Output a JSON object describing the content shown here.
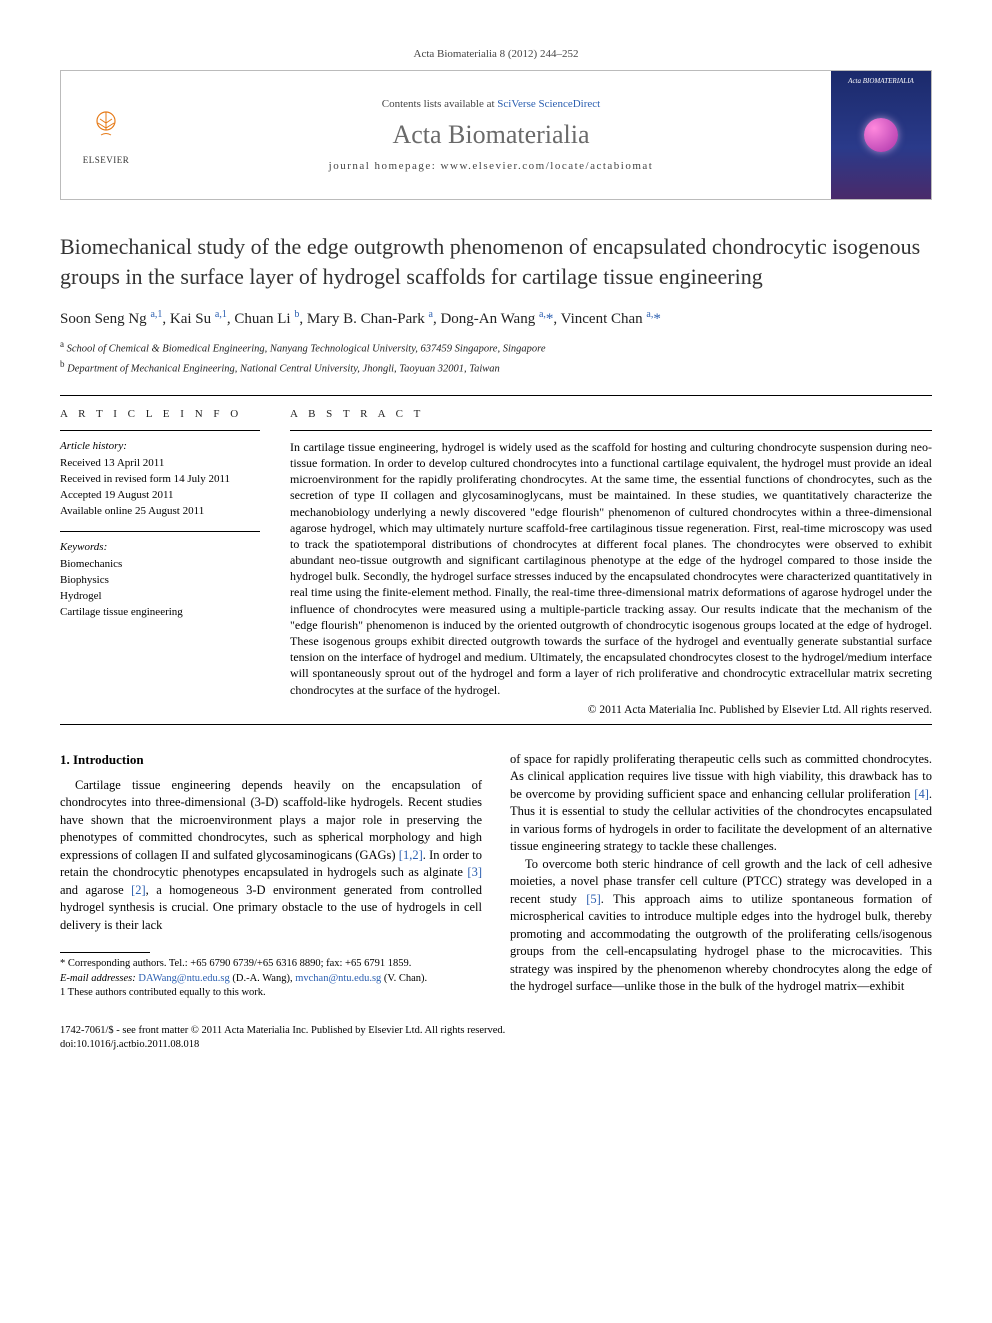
{
  "running_head": "Acta Biomaterialia 8 (2012) 244–252",
  "masthead": {
    "publisher_name": "ELSEVIER",
    "contents_prefix": "Contents lists available at ",
    "contents_link": "SciVerse ScienceDirect",
    "journal_name": "Acta Biomaterialia",
    "homepage_label": "journal homepage: www.elsevier.com/locate/actabiomat",
    "cover_text": "Acta BIOMATERIALIA"
  },
  "title": "Biomechanical study of the edge outgrowth phenomenon of encapsulated chondrocytic isogenous groups in the surface layer of hydrogel scaffolds for cartilage tissue engineering",
  "authors_html": "Soon Seng Ng <sup>a,1</sup>, Kai Su <sup>a,1</sup>, Chuan Li <sup>b</sup>, Mary B. Chan-Park <sup>a</sup>, Dong-An Wang <sup>a,</sup><span class='corr'>*</span>, Vincent Chan <sup>a,</sup><span class='corr'>*</span>",
  "affiliations": {
    "a": "School of Chemical & Biomedical Engineering, Nanyang Technological University, 637459 Singapore, Singapore",
    "b": "Department of Mechanical Engineering, National Central University, Jhongli, Taoyuan 32001, Taiwan"
  },
  "article_info": {
    "head": "A R T I C L E   I N F O",
    "history_head": "Article history:",
    "received": "Received 13 April 2011",
    "revised": "Received in revised form 14 July 2011",
    "accepted": "Accepted 19 August 2011",
    "online": "Available online 25 August 2011",
    "keywords_head": "Keywords:",
    "keywords": [
      "Biomechanics",
      "Biophysics",
      "Hydrogel",
      "Cartilage tissue engineering"
    ]
  },
  "abstract": {
    "head": "A B S T R A C T",
    "text": "In cartilage tissue engineering, hydrogel is widely used as the scaffold for hosting and culturing chondrocyte suspension during neo-tissue formation. In order to develop cultured chondrocytes into a functional cartilage equivalent, the hydrogel must provide an ideal microenvironment for the rapidly proliferating chondrocytes. At the same time, the essential functions of chondrocytes, such as the secretion of type II collagen and glycosaminoglycans, must be maintained. In these studies, we quantitatively characterize the mechanobiology underlying a newly discovered \"edge flourish\" phenomenon of cultured chondrocytes within a three-dimensional agarose hydrogel, which may ultimately nurture scaffold-free cartilaginous tissue regeneration. First, real-time microscopy was used to track the spatiotemporal distributions of chondrocytes at different focal planes. The chondrocytes were observed to exhibit abundant neo-tissue outgrowth and significant cartilaginous phenotype at the edge of the hydrogel compared to those inside the hydrogel bulk. Secondly, the hydrogel surface stresses induced by the encapsulated chondrocytes were characterized quantitatively in real time using the finite-element method. Finally, the real-time three-dimensional matrix deformations of agarose hydrogel under the influence of chondrocytes were measured using a multiple-particle tracking assay. Our results indicate that the mechanism of the \"edge flourish\" phenomenon is induced by the oriented outgrowth of chondrocytic isogenous groups located at the edge of hydrogel. These isogenous groups exhibit directed outgrowth towards the surface of the hydrogel and eventually generate substantial surface tension on the interface of hydrogel and medium. Ultimately, the encapsulated chondrocytes closest to the hydrogel/medium interface will spontaneously sprout out of the hydrogel and form a layer of rich proliferative and chondrocytic extracellular matrix secreting chondrocytes at the surface of the hydrogel.",
    "copyright": "© 2011 Acta Materialia Inc. Published by Elsevier Ltd. All rights reserved."
  },
  "section1": {
    "head": "1. Introduction",
    "p1a": "Cartilage tissue engineering depends heavily on the encapsulation of chondrocytes into three-dimensional (3-D) scaffold-like hydrogels. Recent studies have shown that the microenvironment plays a major role in preserving the phenotypes of committed chondrocytes, such as spherical morphology and high expressions of collagen II and sulfated glycosaminogicans (GAGs) ",
    "ref12": "[1,2]",
    "p1b": ". In order to retain the chondrocytic phenotypes encapsulated in hydrogels such as alginate ",
    "ref3": "[3]",
    "p1c": " and agarose ",
    "ref2": "[2]",
    "p1d": ", a homogeneous 3-D environment generated from controlled hydrogel synthesis is crucial. One primary obstacle to the use of hydrogels in cell delivery is their lack",
    "p2a": "of space for rapidly proliferating therapeutic cells such as committed chondrocytes. As clinical application requires live tissue with high viability, this drawback has to be overcome by providing sufficient space and enhancing cellular proliferation ",
    "ref4": "[4]",
    "p2b": ". Thus it is essential to study the cellular activities of the chondrocytes encapsulated in various forms of hydrogels in order to facilitate the development of an alternative tissue engineering strategy to tackle these challenges.",
    "p3a": "To overcome both steric hindrance of cell growth and the lack of cell adhesive moieties, a novel phase transfer cell culture (PTCC) strategy was developed in a recent study ",
    "ref5": "[5]",
    "p3b": ". This approach aims to utilize spontaneous formation of microspherical cavities to introduce multiple edges into the hydrogel bulk, thereby promoting and accommodating the outgrowth of the proliferating cells/isogenous groups from the cell-encapsulating hydrogel phase to the microcavities. This strategy was inspired by the phenomenon whereby chondrocytes along the edge of the hydrogel surface—unlike those in the bulk of the hydrogel matrix—exhibit"
  },
  "footnotes": {
    "corr": "* Corresponding authors. Tel.: +65 6790 6739/+65 6316 8890; fax: +65 6791 1859.",
    "emails_label": "E-mail addresses:",
    "email1": "DAWang@ntu.edu.sg",
    "email1_who": "(D.-A. Wang),",
    "email2": "mvchan@ntu.edu.sg",
    "email2_who": "(V. Chan).",
    "equal": "1 These authors contributed equally to this work."
  },
  "footer": {
    "line1": "1742-7061/$ - see front matter © 2011 Acta Materialia Inc. Published by Elsevier Ltd. All rights reserved.",
    "doi": "doi:10.1016/j.actbio.2011.08.018"
  },
  "colors": {
    "link": "#2b5fb0",
    "logo_orange": "#e67a17",
    "title_gray": "#6a6a6a"
  }
}
